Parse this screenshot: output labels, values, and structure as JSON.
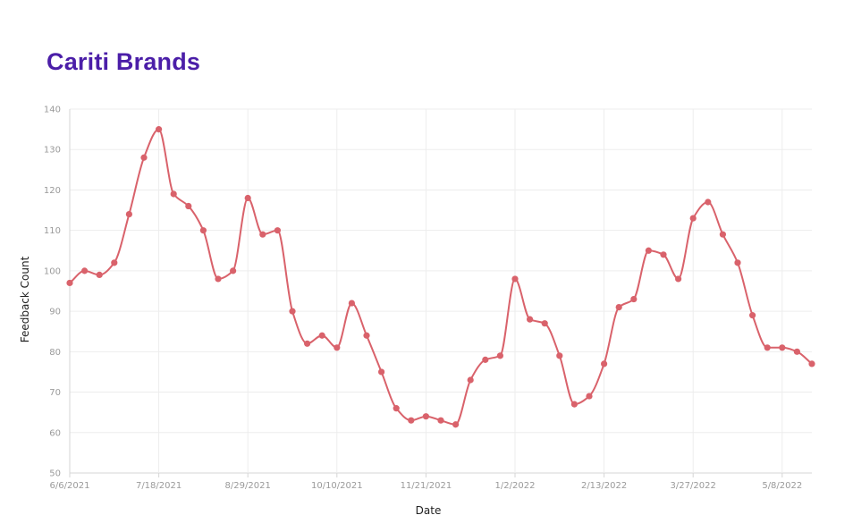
{
  "title": "Cariti Brands",
  "chart_data": {
    "type": "line",
    "title": "Cariti Brands",
    "xlabel": "Date",
    "ylabel": "Feedback Count",
    "x_tick_labels": [
      "6/6/2021",
      "7/18/2021",
      "8/29/2021",
      "10/10/2021",
      "11/21/2021",
      "1/2/2022",
      "2/13/2022",
      "3/27/2022",
      "5/8/2022"
    ],
    "y_ticks": [
      50,
      60,
      70,
      80,
      90,
      100,
      110,
      120,
      130,
      140
    ],
    "ylim": [
      50,
      140
    ],
    "grid": true,
    "line_color": "#d9626b",
    "series": [
      {
        "x": [
          "6/6/2021",
          "6/13/2021",
          "6/20/2021",
          "6/27/2021",
          "7/4/2021",
          "7/11/2021",
          "7/18/2021",
          "7/25/2021",
          "8/1/2021",
          "8/8/2021",
          "8/15/2021",
          "8/22/2021",
          "8/29/2021",
          "9/5/2021",
          "9/12/2021",
          "9/19/2021",
          "9/26/2021",
          "10/3/2021",
          "10/10/2021",
          "10/17/2021",
          "10/24/2021",
          "10/31/2021",
          "11/7/2021",
          "11/14/2021",
          "11/21/2021",
          "11/28/2021",
          "12/5/2021",
          "12/12/2021",
          "12/19/2021",
          "12/26/2021",
          "1/2/2022",
          "1/9/2022",
          "1/16/2022",
          "1/23/2022",
          "1/30/2022",
          "2/6/2022",
          "2/13/2022",
          "2/20/2022",
          "2/27/2022",
          "3/6/2022",
          "3/13/2022",
          "3/20/2022",
          "3/27/2022",
          "4/3/2022",
          "4/10/2022",
          "4/17/2022",
          "4/24/2022",
          "5/1/2022",
          "5/8/2022",
          "5/15/2022",
          "5/22/2022"
        ],
        "values": [
          97,
          100,
          99,
          102,
          114,
          128,
          135,
          119,
          116,
          110,
          98,
          100,
          118,
          109,
          110,
          90,
          82,
          84,
          81,
          92,
          84,
          75,
          66,
          63,
          64,
          63,
          62,
          73,
          78,
          79,
          98,
          88,
          87,
          79,
          67,
          69,
          77,
          91,
          93,
          105,
          104,
          98,
          113,
          117,
          109,
          102,
          89,
          81,
          81,
          80,
          77
        ]
      }
    ]
  }
}
